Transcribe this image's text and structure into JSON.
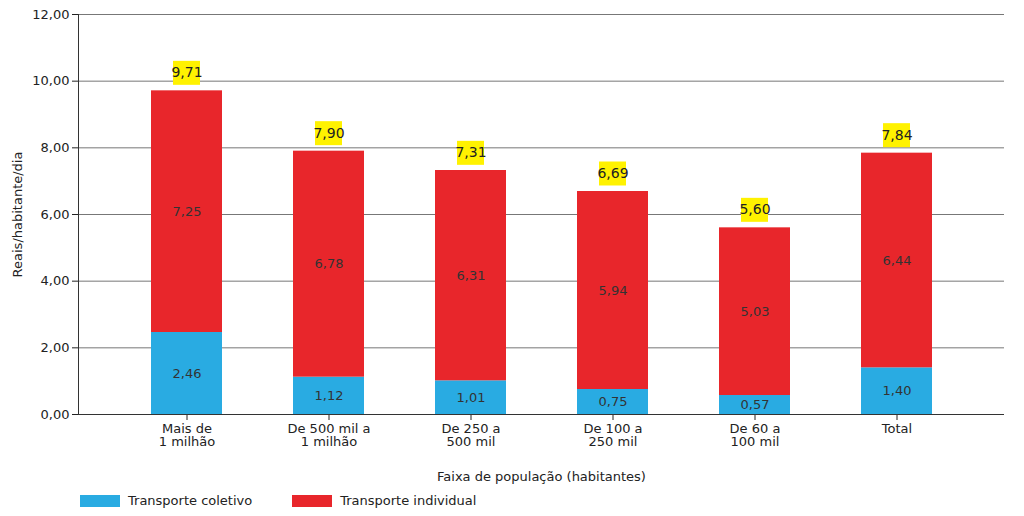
{
  "chart_data": {
    "type": "bar",
    "stacked": true,
    "data_labels": true,
    "grid": true,
    "legend": "bottom",
    "x_label": "Faixa de população (habitantes)",
    "y_label": "Reais/habitante/dia",
    "categories": [
      "Mais de\n1 milhão",
      "De 500 mil a\n1 milhão",
      "De 250 a\n500 mil",
      "De 100 a\n250 mil",
      "De 60 a\n100 mil",
      "Total"
    ],
    "series": [
      {
        "name": "Transporte coletivo",
        "color": "#29abe2",
        "values": [
          2.46,
          1.12,
          1.01,
          0.75,
          0.57,
          1.4
        ],
        "value_labels": [
          "2,46",
          "1,12",
          "1,01",
          "0,75",
          "0,57",
          "1,40"
        ]
      },
      {
        "name": "Transporte individual",
        "color": "#e8262b",
        "values": [
          7.25,
          6.78,
          6.31,
          5.94,
          5.03,
          6.44
        ],
        "value_labels": [
          "7,25",
          "6,78",
          "6,31",
          "5,94",
          "5,03",
          "6,44"
        ]
      }
    ],
    "totals": [
      9.71,
      7.9,
      7.31,
      6.69,
      5.6,
      7.84
    ],
    "total_labels": [
      "9,71",
      "7,90",
      "7,31",
      "6,69",
      "5,60",
      "7,84"
    ],
    "ylim": [
      0,
      12
    ],
    "yticks": [
      {
        "value": 0,
        "label": "0,00"
      },
      {
        "value": 2,
        "label": "2,00"
      },
      {
        "value": 4,
        "label": "4,00"
      },
      {
        "value": 6,
        "label": "6,00"
      },
      {
        "value": 8,
        "label": "8,00"
      },
      {
        "value": 10,
        "label": "10,00"
      },
      {
        "value": 12,
        "label": "12,00"
      }
    ]
  }
}
